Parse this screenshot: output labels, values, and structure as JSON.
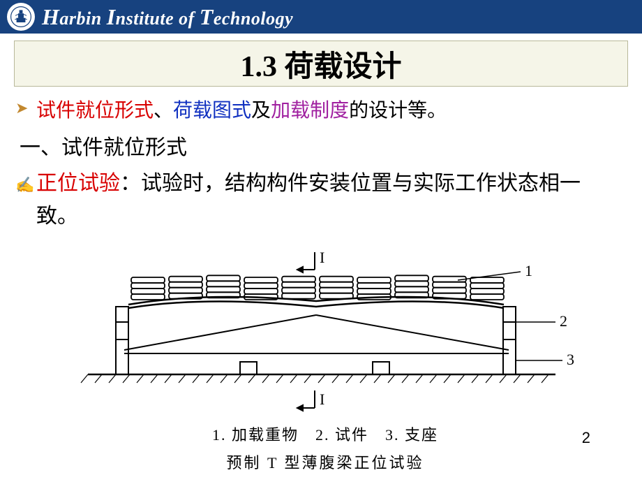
{
  "header": {
    "institution": "Harbin Institute of Technology"
  },
  "slide": {
    "title": "1.3 荷载设计",
    "bullet1_part1": "试件就位形式",
    "bullet1_sep1": "、",
    "bullet1_part2": "荷载图式",
    "bullet1_sep2": "及",
    "bullet1_part3": "加载制度",
    "bullet1_tail": "的设计等。",
    "section_heading": "一、试件就位形式",
    "bullet2_term": "正位试验",
    "bullet2_colon": "：",
    "bullet2_body": "试验时，结构构件安装位置与实际工作状态相一致。"
  },
  "diagram": {
    "section_label_top": "I",
    "section_label_bottom": "I",
    "label_1": "1",
    "label_2": "2",
    "label_3": "3",
    "legend": "1. 加载重物　2. 试件　3. 支座",
    "caption": "预制 T 型薄腹梁正位试验",
    "num_load_stacks": 10,
    "colors": {
      "stroke": "#000000",
      "background": "#ffffff"
    }
  },
  "page_number": "2",
  "styling": {
    "header_bg": "#17427f",
    "title_bar_bg": "#f5f5e8",
    "title_bar_border": "#b8b89a",
    "red": "#d80000",
    "blue": "#1030c0",
    "purple": "#a020a0",
    "bullet_arrow_color": "#c2882f",
    "body_font_size": 30,
    "title_font_size": 42
  }
}
